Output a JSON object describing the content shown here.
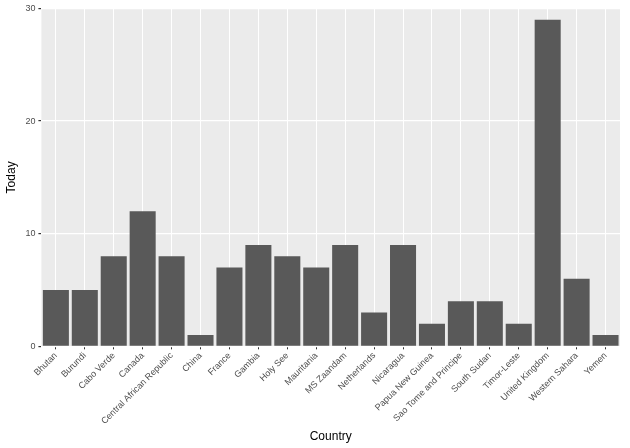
{
  "chart_data": {
    "type": "bar",
    "x_label": "Country",
    "y_label": "Today",
    "categories": [
      "Bhutan",
      "Burundi",
      "Cabo Verde",
      "Canada",
      "Central African Republic",
      "China",
      "France",
      "Gambia",
      "Holy See",
      "Mauritania",
      "MS Zaandam",
      "Netherlands",
      "Nicaragua",
      "Papua New Guinea",
      "Sao Tome and Principe",
      "South Sudan",
      "Timor-Leste",
      "United Kingdom",
      "Western Sahara",
      "Yemen"
    ],
    "values": [
      5,
      5,
      8,
      12,
      8,
      1,
      7,
      9,
      8,
      7,
      9,
      3,
      9,
      2,
      4,
      4,
      2,
      29,
      6,
      1
    ],
    "color": "#595959",
    "ylim": [
      0,
      30
    ],
    "yticks": [
      0,
      10,
      20,
      30
    ],
    "grid": true
  }
}
